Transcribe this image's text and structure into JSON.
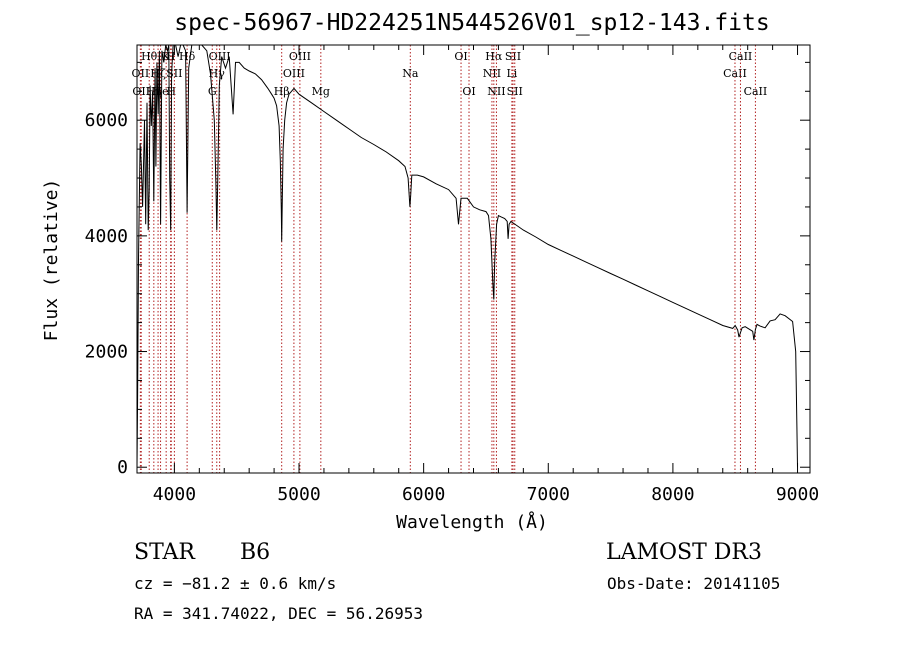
{
  "chart_data": {
    "type": "line",
    "title": "spec-56967-HD224251N544526V01_sp12-143.fits",
    "xlabel": "Wavelength (Å)",
    "ylabel": "Flux (relative)",
    "xlim": [
      3700,
      9100
    ],
    "ylim": [
      -100,
      7300
    ],
    "x_ticks": [
      4000,
      5000,
      6000,
      7000,
      8000,
      9000
    ],
    "x_tick_labels": [
      "4000",
      "5000",
      "6000",
      "7000",
      "8000",
      "9000"
    ],
    "y_ticks": [
      0,
      2000,
      4000,
      6000
    ],
    "y_tick_labels": [
      "0",
      "2000",
      "4000",
      "6000"
    ],
    "grid": false,
    "series": [
      {
        "name": "spectrum",
        "x": [
          3700,
          3705,
          3712,
          3725,
          3735,
          3745,
          3760,
          3770,
          3780,
          3790,
          3798,
          3805,
          3815,
          3825,
          3835,
          3845,
          3852,
          3860,
          3870,
          3880,
          3889,
          3900,
          3915,
          3930,
          3945,
          3955,
          3962,
          3970,
          3978,
          3990,
          4010,
          4030,
          4050,
          4070,
          4090,
          4102,
          4115,
          4140,
          4180,
          4220,
          4260,
          4290,
          4320,
          4333,
          4340,
          4348,
          4360,
          4380,
          4410,
          4440,
          4471,
          4490,
          4520,
          4560,
          4600,
          4650,
          4700,
          4750,
          4780,
          4800,
          4820,
          4840,
          4850,
          4858,
          4861,
          4864,
          4872,
          4885,
          4900,
          4920,
          4960,
          5000,
          5100,
          5200,
          5300,
          5400,
          5500,
          5600,
          5700,
          5800,
          5850,
          5875,
          5890,
          5896,
          5905,
          5950,
          6000,
          6100,
          6200,
          6260,
          6280,
          6300,
          6350,
          6400,
          6450,
          6500,
          6520,
          6540,
          6555,
          6563,
          6570,
          6585,
          6600,
          6620,
          6650,
          6670,
          6678,
          6686,
          6700,
          6800,
          6900,
          7000,
          7100,
          7200,
          7300,
          7400,
          7500,
          7600,
          7700,
          7800,
          7900,
          8000,
          8100,
          8200,
          8300,
          8400,
          8480,
          8500,
          8520,
          8530,
          8542,
          8555,
          8580,
          8640,
          8650,
          8662,
          8675,
          8700,
          8740,
          8780,
          8820,
          8860,
          8900,
          8960,
          8985,
          8995,
          9000
        ],
        "y": [
          0,
          1200,
          3600,
          5600,
          5200,
          4500,
          6000,
          4200,
          6300,
          4100,
          4800,
          6600,
          5900,
          6500,
          4600,
          6900,
          5200,
          7000,
          6100,
          7200,
          4200,
          7200,
          7000,
          7300,
          7200,
          7400,
          5000,
          4100,
          6800,
          7350,
          7300,
          7100,
          7350,
          7300,
          7200,
          4400,
          6900,
          7300,
          7400,
          7300,
          7200,
          6800,
          6000,
          4900,
          4100,
          5000,
          6600,
          7100,
          6900,
          7100,
          6100,
          7000,
          7000,
          6900,
          6850,
          6800,
          6700,
          6550,
          6450,
          6380,
          6250,
          5900,
          5300,
          4450,
          3900,
          4400,
          5500,
          6000,
          6300,
          6450,
          6550,
          6450,
          6300,
          6150,
          6000,
          5850,
          5700,
          5580,
          5450,
          5300,
          5200,
          5000,
          4500,
          4700,
          5050,
          5050,
          5020,
          4900,
          4800,
          4650,
          4200,
          4650,
          4650,
          4500,
          4450,
          4420,
          4350,
          3950,
          3200,
          2900,
          3550,
          4200,
          4350,
          4330,
          4300,
          4250,
          3950,
          4200,
          4250,
          4100,
          3980,
          3850,
          3750,
          3650,
          3550,
          3450,
          3350,
          3250,
          3150,
          3050,
          2950,
          2850,
          2750,
          2650,
          2550,
          2450,
          2400,
          2450,
          2370,
          2250,
          2330,
          2410,
          2430,
          2350,
          2200,
          2380,
          2470,
          2440,
          2410,
          2530,
          2550,
          2650,
          2620,
          2520,
          2000,
          700,
          0
        ]
      }
    ],
    "line_markers": [
      {
        "x": 3727,
        "label": "OII",
        "row": 2
      },
      {
        "x": 3734,
        "label": "OII",
        "row": 3
      },
      {
        "x": 3798,
        "label": "Hθ",
        "row": 1
      },
      {
        "x": 3835,
        "label": "Hη",
        "row": 3
      },
      {
        "x": 3869,
        "label": "Hζ",
        "row": 2
      },
      {
        "x": 3889,
        "label": "He",
        "row": 3
      },
      {
        "x": 3934,
        "label": "K",
        "row": 1
      },
      {
        "x": 3970,
        "label": "H",
        "row": 1
      },
      {
        "x": 3975,
        "label": "H",
        "row": 3
      },
      {
        "x": 4000,
        "label": "SII",
        "row": 2
      },
      {
        "x": 4102,
        "label": "Hδ",
        "row": 1
      },
      {
        "x": 4304,
        "label": "G",
        "row": 3
      },
      {
        "x": 4340,
        "label": "Hγ",
        "row": 2
      },
      {
        "x": 4363,
        "label": "OIII",
        "row": 1
      },
      {
        "x": 4861,
        "label": "Hβ",
        "row": 3
      },
      {
        "x": 4959,
        "label": "OIII",
        "row": 2
      },
      {
        "x": 5007,
        "label": "OIII",
        "row": 1
      },
      {
        "x": 5175,
        "label": "Mg",
        "row": 3
      },
      {
        "x": 5893,
        "label": "Na",
        "row": 2
      },
      {
        "x": 6300,
        "label": "OI",
        "row": 1
      },
      {
        "x": 6364,
        "label": "OI",
        "row": 3
      },
      {
        "x": 6548,
        "label": "NII",
        "row": 2
      },
      {
        "x": 6563,
        "label": "Hα",
        "row": 1
      },
      {
        "x": 6584,
        "label": "NII",
        "row": 3
      },
      {
        "x": 6717,
        "label": "SII",
        "row": 1
      },
      {
        "x": 6731,
        "label": "SII",
        "row": 3
      },
      {
        "x": 6708,
        "label": "Li",
        "row": 2
      },
      {
        "x": 8498,
        "label": "CaII",
        "row": 2
      },
      {
        "x": 8542,
        "label": "CaII",
        "row": 1
      },
      {
        "x": 8662,
        "label": "CaII",
        "row": 3
      }
    ],
    "annotations": {
      "object": "STAR",
      "subclass": "B6",
      "survey": "LAMOST DR3",
      "redshift": "cz = −81.2 ± 0.6 km/s",
      "obs_date": "Obs-Date: 20141105",
      "coords": "RA = 341.74022, DEC =  56.26953"
    }
  },
  "colors": {
    "line_marker": "#b22222",
    "spectrum": "#000000",
    "axes": "#000000"
  }
}
